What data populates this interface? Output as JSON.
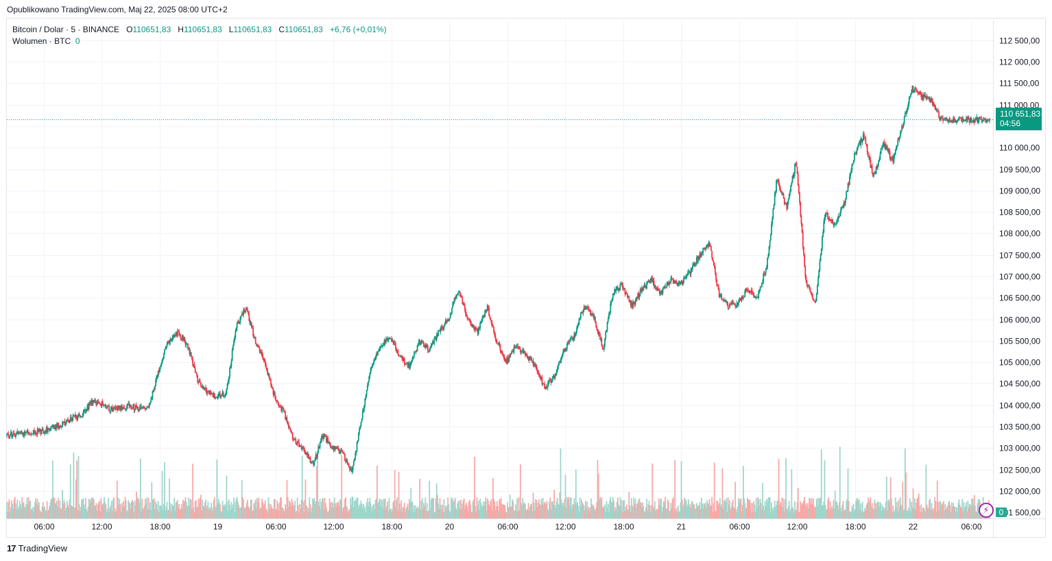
{
  "header": {
    "published": "Opublikowano TradingView.com, Maj 22, 2025 08:00 UTC+2"
  },
  "legend": {
    "symbol": "Bitcoin / Dolar · 5 · BINANCE",
    "o_label": "O",
    "o_value": "110651,83",
    "h_label": "H",
    "h_value": "110651,83",
    "l_label": "L",
    "l_value": "110651,83",
    "c_label": "C",
    "c_value": "110651,83",
    "change": "+6,76 (+0,01%)",
    "volume_label": "Wolumen · BTC",
    "volume_value": "0"
  },
  "price_tag": {
    "price": "110 651,83",
    "countdown": "04:56"
  },
  "volume_badge": "0",
  "footer": {
    "brand": "TradingView",
    "brand_mark": "17"
  },
  "colors": {
    "up": "#089981",
    "down": "#f23645",
    "vol_up": "#9ed6cc",
    "vol_down": "#f7a9a7",
    "grid": "#f0f3fa",
    "axis_text": "#131722"
  },
  "chart_data": {
    "type": "candlestick",
    "title": "Bitcoin / Dolar · 5 · BINANCE",
    "ylim": [
      101200,
      112800
    ],
    "y_ticks": [
      101500,
      102000,
      102500,
      103000,
      103500,
      104000,
      104500,
      105000,
      105500,
      106000,
      106500,
      107000,
      107500,
      108000,
      108500,
      109000,
      109500,
      110000,
      110500,
      111000,
      111500,
      112000,
      112500
    ],
    "y_tick_labels": [
      "101 500,00",
      "102 000,00",
      "102 500,00",
      "103 000,00",
      "103 500,00",
      "104 000,00",
      "104 500,00",
      "105 000,00",
      "105 500,00",
      "106 000,00",
      "106 500,00",
      "107 000,00",
      "107 500,00",
      "108 000,00",
      "108 500,00",
      "109 000,00",
      "109 500,00",
      "110 000,00",
      "110 500,00",
      "111 000,00",
      "111 500,00",
      "112 000,00",
      "112 500,00"
    ],
    "x_ticks_hours": [
      6,
      12,
      18,
      24,
      30,
      36,
      42,
      48,
      54,
      60,
      66,
      72,
      78,
      84,
      90,
      96,
      102
    ],
    "x_tick_labels": [
      "06:00",
      "12:00",
      "18:00",
      "19",
      "06:00",
      "12:00",
      "18:00",
      "20",
      "06:00",
      "12:00",
      "18:00",
      "21",
      "06:00",
      "12:00",
      "18:00",
      "22",
      "06:00"
    ],
    "x_range_hours": [
      2.2,
      104.3
    ],
    "last_price": 110651.83,
    "price_path_hours": [
      2.2,
      4,
      6,
      8,
      9,
      10,
      11,
      12,
      13,
      14,
      15,
      16,
      17,
      18,
      19,
      20,
      21,
      22,
      23,
      24,
      25,
      26,
      27,
      28,
      29,
      30,
      31,
      32,
      33,
      34,
      35,
      36,
      37,
      38,
      39,
      40,
      41,
      42,
      43,
      44,
      45,
      46,
      47,
      48,
      49,
      50,
      51,
      52,
      53,
      54,
      55,
      56,
      57,
      58,
      59,
      60,
      61,
      62,
      63,
      64,
      65,
      66,
      67,
      68,
      69,
      70,
      71,
      72,
      73,
      74,
      75,
      76,
      77,
      78,
      79,
      80,
      81,
      82,
      83,
      84,
      85,
      86,
      87,
      87.5,
      88,
      89,
      90,
      91,
      92,
      93,
      94,
      95,
      96,
      97,
      98,
      99,
      100,
      101,
      101.5,
      102,
      103,
      104,
      104.3
    ],
    "price_path_values": [
      103300,
      103350,
      103400,
      103550,
      103700,
      103750,
      104050,
      104050,
      103900,
      103950,
      104000,
      103900,
      104000,
      104800,
      105500,
      105700,
      105400,
      104600,
      104300,
      104200,
      104300,
      105800,
      106300,
      105500,
      105000,
      104200,
      103800,
      103200,
      103000,
      102600,
      103300,
      103000,
      102900,
      102400,
      103700,
      104900,
      105400,
      105600,
      105100,
      104900,
      105500,
      105300,
      105700,
      106000,
      106700,
      106000,
      105700,
      106300,
      105500,
      105000,
      105400,
      105200,
      104900,
      104400,
      104700,
      105300,
      105600,
      106300,
      106100,
      105300,
      106600,
      106800,
      106300,
      106700,
      106900,
      106600,
      106900,
      106800,
      107100,
      107500,
      107800,
      106600,
      106300,
      106400,
      106700,
      106500,
      107300,
      109300,
      108600,
      109700,
      106900,
      106400,
      108500,
      108300,
      108200,
      108700,
      109800,
      110300,
      109300,
      110100,
      109700,
      110500,
      111400,
      111200,
      111100,
      110651.83,
      110651.83,
      110651.83,
      110651.83,
      110651.83,
      110651.83,
      110651.83,
      110651.83
    ],
    "volume_ylim": [
      0,
      3500
    ]
  }
}
